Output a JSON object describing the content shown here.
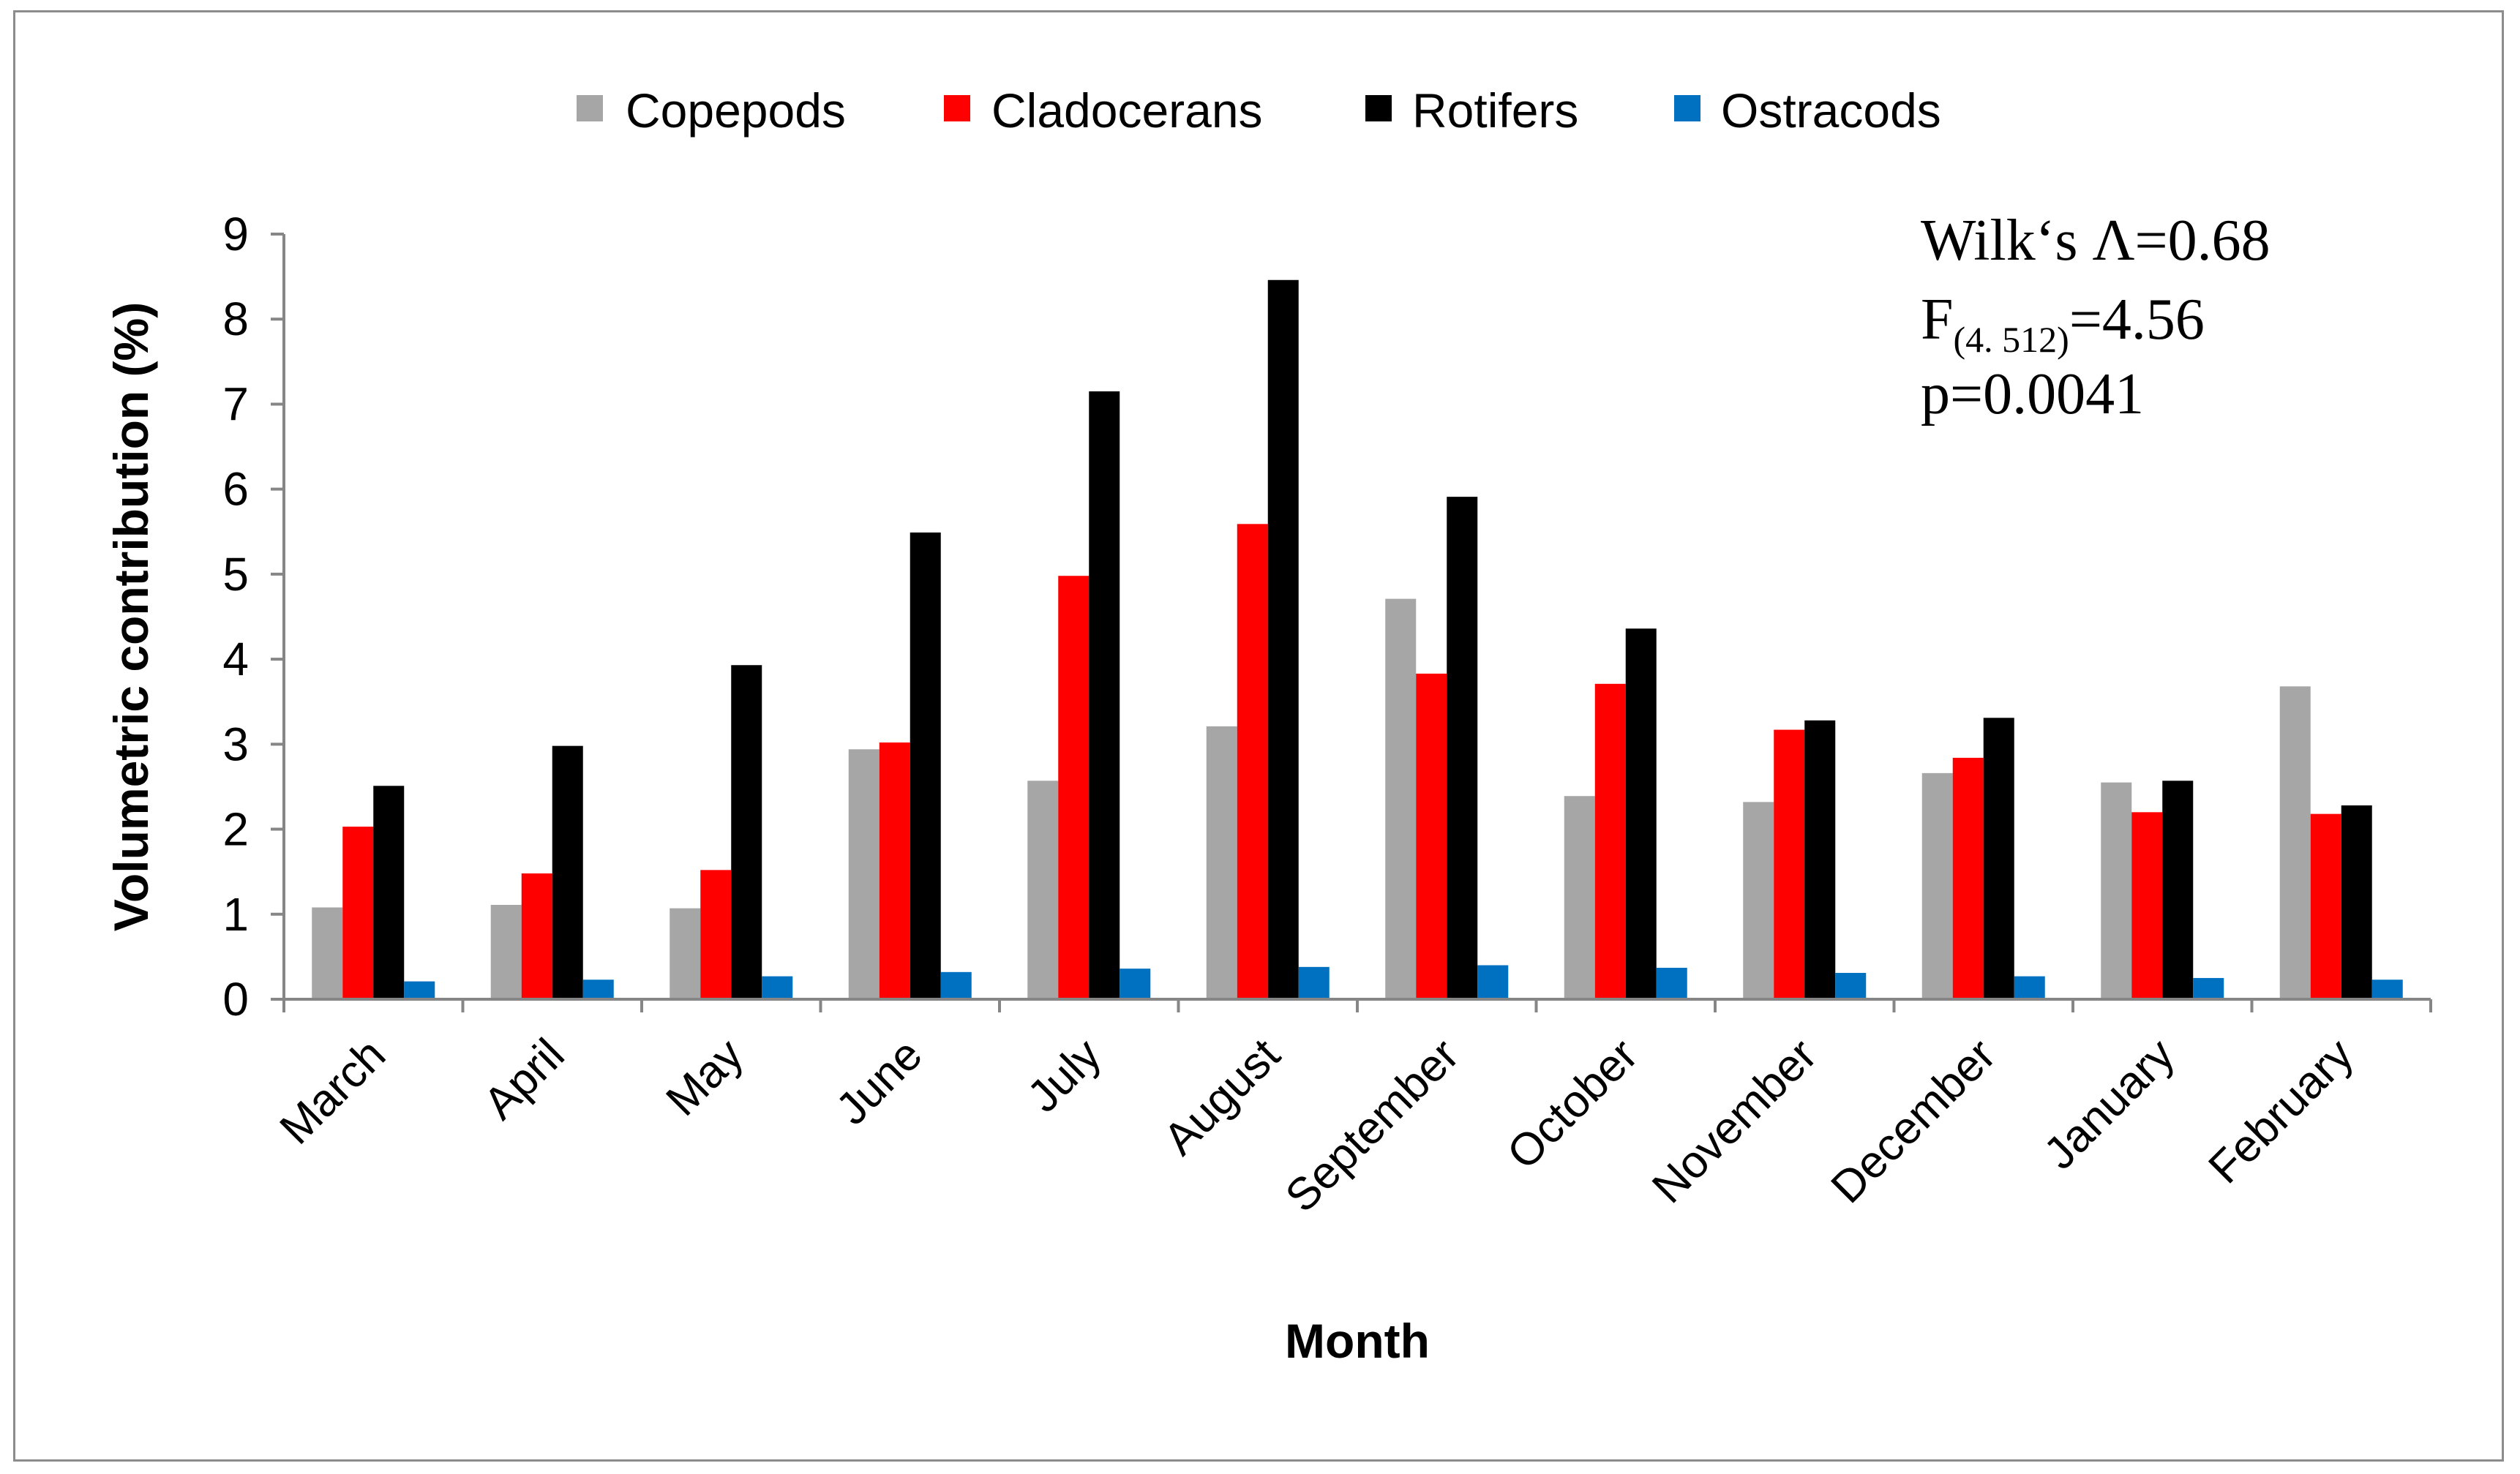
{
  "chart_data": {
    "type": "bar",
    "title": "",
    "xlabel": "Month",
    "ylabel": "Volumetric contribution (%)",
    "ylim": [
      0,
      9
    ],
    "yticks": [
      "0",
      "1",
      "2",
      "3",
      "4",
      "5",
      "6",
      "7",
      "8",
      "9"
    ],
    "grid": false,
    "legend_position": "top",
    "categories": [
      "March",
      "April",
      "May",
      "June",
      "July",
      "August",
      "September",
      "October",
      "November",
      "December",
      "January",
      "February"
    ],
    "series": [
      {
        "name": "Copepods",
        "color": "#a6a6a6",
        "values": [
          1.08,
          1.11,
          1.07,
          2.94,
          2.57,
          3.21,
          4.71,
          2.39,
          2.32,
          2.66,
          2.55,
          3.68
        ]
      },
      {
        "name": "Cladocerans",
        "color": "#ff0000",
        "values": [
          2.03,
          1.48,
          1.52,
          3.02,
          4.98,
          5.59,
          3.83,
          3.71,
          3.17,
          2.84,
          2.2,
          2.18
        ]
      },
      {
        "name": "Rotifers",
        "color": "#000000",
        "values": [
          2.51,
          2.98,
          3.93,
          5.49,
          7.15,
          8.46,
          5.91,
          4.36,
          3.28,
          3.31,
          2.57,
          2.28
        ]
      },
      {
        "name": "Ostracods",
        "color": "#0070c0",
        "values": [
          0.21,
          0.23,
          0.27,
          0.32,
          0.36,
          0.38,
          0.4,
          0.37,
          0.31,
          0.27,
          0.25,
          0.23
        ]
      }
    ],
    "annotations": {
      "wilks": "Wilk‘s Λ=0.68",
      "f_prefix": "F",
      "f_sub": "(4. 512)",
      "f_value": "=4.56",
      "p_value": "p=0.0041"
    }
  }
}
